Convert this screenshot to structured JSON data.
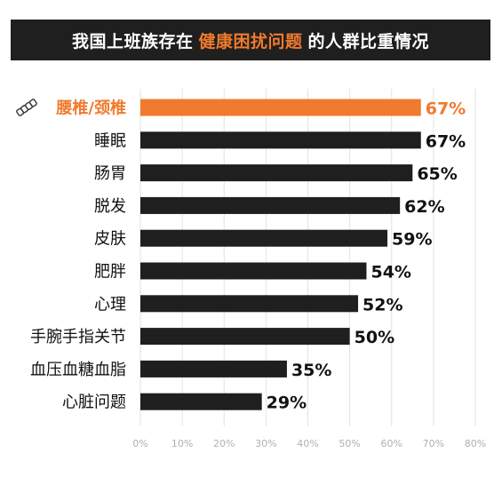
{
  "title": {
    "prefix": "我国上班族存在",
    "highlight": "健康困扰问题",
    "suffix": "的人群比重情况"
  },
  "colors": {
    "banner_bg": "#1f1f1f",
    "highlight": "#f07a2e",
    "bar": "#1f1f1f",
    "grid": "#e2e2e2",
    "tick_text": "#b0b0b0",
    "text": "#111111"
  },
  "chart_data": {
    "type": "bar",
    "orientation": "horizontal",
    "title": "我国上班族存在 健康困扰问题 的人群比重情况",
    "categories": [
      "腰椎/颈椎",
      "睡眠",
      "肠胃",
      "脱发",
      "皮肤",
      "肥胖",
      "心理",
      "手腕手指关节",
      "血压血糖血脂",
      "心脏问题"
    ],
    "values": [
      67,
      67,
      65,
      62,
      59,
      54,
      52,
      50,
      35,
      29
    ],
    "value_labels": [
      "67%",
      "67%",
      "65%",
      "62%",
      "59%",
      "54%",
      "52%",
      "50%",
      "35%",
      "29%"
    ],
    "highlighted_index": 0,
    "highlight_icon": "spine-icon",
    "xlim": [
      0,
      80
    ],
    "xticks": [
      0,
      10,
      20,
      30,
      40,
      50,
      60,
      70,
      80
    ],
    "xtick_labels": [
      "0%",
      "10%",
      "20%",
      "30%",
      "40%",
      "50%",
      "60%",
      "70%",
      "80%"
    ],
    "grid": true
  }
}
